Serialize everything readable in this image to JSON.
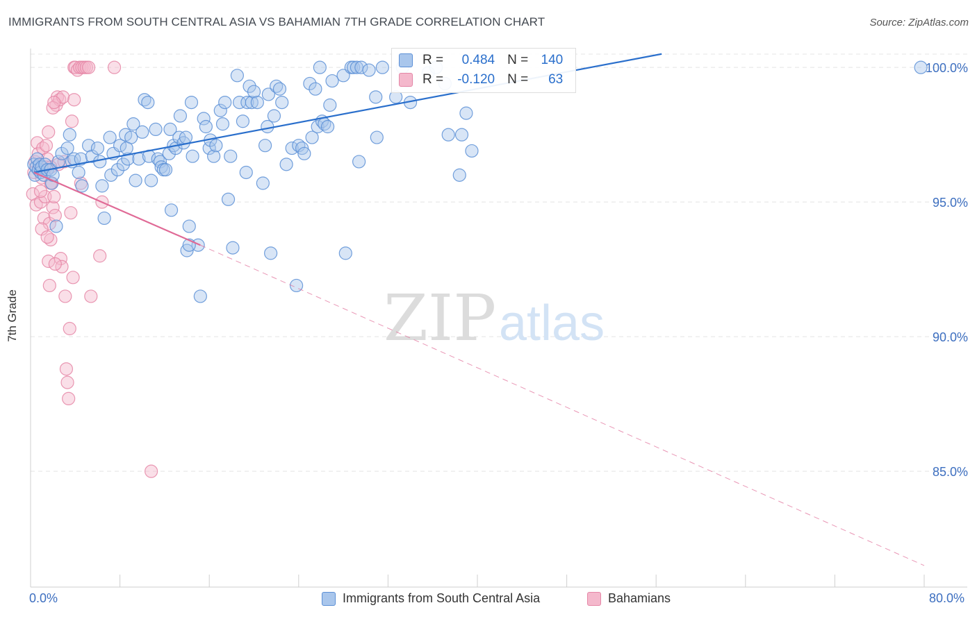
{
  "header": {
    "title": "IMMIGRANTS FROM SOUTH CENTRAL ASIA VS BAHAMIAN 7TH GRADE CORRELATION CHART",
    "source": "Source: ZipAtlas.com"
  },
  "watermark": {
    "zip": "ZIP",
    "atlas": "atlas"
  },
  "stats": {
    "blue": {
      "r_label": "R =",
      "r_value": "0.484",
      "n_label": "N =",
      "n_value": "140"
    },
    "pink": {
      "r_label": "R =",
      "r_value": "-0.120",
      "n_label": "N =",
      "n_value": "63"
    }
  },
  "colors": {
    "blue_fill": "#a9c6ec",
    "blue_stroke": "#5b8fd6",
    "blue_line": "#2a6fcc",
    "pink_fill": "#f4b8cc",
    "pink_stroke": "#e586a6",
    "pink_line": "#e06a96",
    "axis_label": "#3d6fc0",
    "grid": "#e4e4e4"
  },
  "chart_data": {
    "type": "scatter",
    "title": "IMMIGRANTS FROM SOUTH CENTRAL ASIA VS BAHAMIAN 7TH GRADE CORRELATION CHART",
    "xlabel": "",
    "ylabel": "7th Grade",
    "xlim": [
      0,
      80
    ],
    "ylim": [
      80.7,
      100.7
    ],
    "x_tick_labels": [
      "0.0%",
      "80.0%"
    ],
    "y_ticks": [
      85,
      90,
      95,
      100
    ],
    "y_tick_labels": [
      "85.0%",
      "90.0%",
      "95.0%",
      "100.0%"
    ],
    "grid": true,
    "legend": {
      "placement": "bottom-center"
    },
    "series": [
      {
        "name": "Immigrants from South Central Asia",
        "r": 0.484,
        "n": 140,
        "trend": {
          "x": [
            0.3,
            56.5
          ],
          "y": [
            96.1,
            100.5
          ],
          "dashed_extension": false
        },
        "points": [
          [
            0.3,
            96.4
          ],
          [
            0.4,
            96.0
          ],
          [
            0.5,
            96.3
          ],
          [
            0.6,
            96.6
          ],
          [
            0.7,
            96.2
          ],
          [
            0.8,
            96.4
          ],
          [
            0.9,
            96.1
          ],
          [
            1.0,
            96.3
          ],
          [
            1.2,
            96.0
          ],
          [
            1.3,
            96.4
          ],
          [
            1.5,
            96.2
          ],
          [
            1.8,
            96.2
          ],
          [
            1.9,
            95.7
          ],
          [
            2.0,
            96.0
          ],
          [
            2.3,
            94.1
          ],
          [
            2.5,
            96.5
          ],
          [
            2.8,
            96.8
          ],
          [
            3.3,
            97.0
          ],
          [
            3.5,
            97.5
          ],
          [
            3.7,
            96.5
          ],
          [
            3.9,
            96.6
          ],
          [
            4.3,
            96.1
          ],
          [
            4.5,
            96.6
          ],
          [
            4.6,
            95.6
          ],
          [
            5.2,
            97.1
          ],
          [
            5.5,
            96.7
          ],
          [
            6.0,
            97.0
          ],
          [
            6.2,
            96.5
          ],
          [
            6.4,
            95.6
          ],
          [
            6.6,
            94.4
          ],
          [
            7.1,
            97.4
          ],
          [
            7.2,
            96.0
          ],
          [
            7.4,
            96.8
          ],
          [
            7.8,
            96.2
          ],
          [
            8.0,
            97.1
          ],
          [
            8.3,
            96.4
          ],
          [
            8.5,
            97.5
          ],
          [
            8.7,
            96.6
          ],
          [
            9.0,
            97.4
          ],
          [
            9.2,
            97.9
          ],
          [
            9.4,
            95.8
          ],
          [
            9.7,
            96.6
          ],
          [
            10.0,
            97.6
          ],
          [
            10.2,
            98.8
          ],
          [
            10.5,
            98.7
          ],
          [
            10.6,
            96.7
          ],
          [
            10.8,
            95.8
          ],
          [
            11.2,
            97.7
          ],
          [
            11.4,
            96.6
          ],
          [
            11.6,
            96.5
          ],
          [
            11.7,
            96.3
          ],
          [
            11.9,
            96.2
          ],
          [
            12.1,
            96.2
          ],
          [
            12.4,
            96.8
          ],
          [
            12.5,
            97.7
          ],
          [
            12.6,
            94.7
          ],
          [
            12.8,
            97.1
          ],
          [
            13.0,
            97.0
          ],
          [
            13.3,
            97.4
          ],
          [
            13.4,
            98.2
          ],
          [
            13.7,
            97.2
          ],
          [
            13.9,
            97.4
          ],
          [
            14.0,
            93.2
          ],
          [
            14.2,
            94.1
          ],
          [
            14.4,
            98.7
          ],
          [
            14.5,
            96.7
          ],
          [
            15.0,
            93.4
          ],
          [
            15.2,
            91.5
          ],
          [
            15.5,
            98.1
          ],
          [
            15.7,
            97.8
          ],
          [
            16.0,
            97.0
          ],
          [
            16.1,
            97.3
          ],
          [
            16.4,
            96.7
          ],
          [
            16.6,
            97.1
          ],
          [
            17.0,
            98.4
          ],
          [
            17.2,
            97.9
          ],
          [
            17.4,
            98.7
          ],
          [
            17.7,
            95.1
          ],
          [
            17.9,
            96.7
          ],
          [
            18.1,
            93.3
          ],
          [
            18.5,
            99.7
          ],
          [
            18.7,
            98.7
          ],
          [
            19.0,
            98.0
          ],
          [
            19.3,
            96.1
          ],
          [
            19.4,
            98.7
          ],
          [
            19.6,
            99.3
          ],
          [
            19.8,
            98.7
          ],
          [
            20.0,
            99.1
          ],
          [
            20.3,
            98.7
          ],
          [
            20.8,
            95.7
          ],
          [
            21.0,
            97.1
          ],
          [
            21.2,
            97.8
          ],
          [
            21.3,
            99.0
          ],
          [
            21.5,
            93.1
          ],
          [
            21.8,
            98.2
          ],
          [
            22.0,
            99.3
          ],
          [
            22.3,
            99.2
          ],
          [
            22.5,
            98.7
          ],
          [
            22.9,
            96.4
          ],
          [
            23.4,
            97.0
          ],
          [
            23.8,
            91.9
          ],
          [
            24.0,
            97.1
          ],
          [
            24.3,
            97.0
          ],
          [
            24.5,
            96.8
          ],
          [
            25.0,
            99.4
          ],
          [
            25.2,
            97.4
          ],
          [
            25.5,
            99.2
          ],
          [
            25.7,
            97.8
          ],
          [
            25.9,
            100.0
          ],
          [
            26.1,
            98.0
          ],
          [
            26.3,
            97.9
          ],
          [
            26.6,
            97.8
          ],
          [
            26.8,
            98.6
          ],
          [
            27.0,
            99.5
          ],
          [
            28.0,
            99.7
          ],
          [
            28.2,
            93.1
          ],
          [
            28.7,
            100.0
          ],
          [
            28.9,
            100.0
          ],
          [
            29.2,
            100.0
          ],
          [
            29.4,
            96.5
          ],
          [
            29.6,
            100.0
          ],
          [
            30.3,
            99.9
          ],
          [
            30.9,
            98.9
          ],
          [
            31.0,
            97.4
          ],
          [
            31.5,
            100.0
          ],
          [
            32.7,
            98.9
          ],
          [
            33.3,
            100.0
          ],
          [
            33.7,
            99.5
          ],
          [
            34.0,
            98.7
          ],
          [
            35.6,
            99.8
          ],
          [
            36.3,
            100.0
          ],
          [
            37.1,
            99.4
          ],
          [
            37.4,
            97.5
          ],
          [
            38.4,
            96.0
          ],
          [
            38.6,
            97.5
          ],
          [
            39.0,
            98.3
          ],
          [
            39.5,
            96.9
          ],
          [
            79.7,
            100.0
          ],
          [
            14.2,
            93.4
          ],
          [
            8.6,
            97.0
          ]
        ]
      },
      {
        "name": "Bahamians",
        "r": -0.12,
        "n": 63,
        "trend": {
          "x": [
            0.3,
            15.2
          ],
          "y": [
            96.1,
            93.4
          ],
          "dashed_to": [
            80.0,
            81.5
          ]
        },
        "points": [
          [
            0.2,
            95.3
          ],
          [
            0.3,
            96.1
          ],
          [
            0.4,
            96.5
          ],
          [
            0.5,
            94.9
          ],
          [
            0.6,
            97.2
          ],
          [
            0.7,
            96.8
          ],
          [
            0.8,
            96.2
          ],
          [
            0.9,
            95.0
          ],
          [
            1.0,
            95.9
          ],
          [
            1.1,
            97.0
          ],
          [
            1.2,
            94.4
          ],
          [
            1.3,
            95.2
          ],
          [
            1.4,
            96.3
          ],
          [
            1.5,
            96.6
          ],
          [
            1.6,
            97.6
          ],
          [
            1.7,
            94.2
          ],
          [
            1.8,
            93.6
          ],
          [
            1.9,
            95.7
          ],
          [
            2.0,
            94.8
          ],
          [
            2.1,
            95.2
          ],
          [
            2.2,
            94.5
          ],
          [
            2.3,
            98.6
          ],
          [
            2.4,
            98.9
          ],
          [
            2.5,
            96.4
          ],
          [
            2.6,
            98.8
          ],
          [
            2.7,
            92.9
          ],
          [
            2.8,
            92.6
          ],
          [
            2.9,
            98.9
          ],
          [
            3.0,
            96.5
          ],
          [
            3.1,
            91.5
          ],
          [
            3.2,
            88.8
          ],
          [
            3.3,
            88.3
          ],
          [
            3.4,
            87.7
          ],
          [
            3.5,
            90.3
          ],
          [
            3.6,
            94.6
          ],
          [
            3.7,
            98.0
          ],
          [
            3.8,
            92.2
          ],
          [
            3.9,
            100.0
          ],
          [
            4.0,
            100.0
          ],
          [
            4.2,
            99.9
          ],
          [
            4.4,
            100.0
          ],
          [
            4.6,
            100.0
          ],
          [
            4.8,
            100.0
          ],
          [
            5.0,
            100.0
          ],
          [
            5.2,
            100.0
          ],
          [
            5.4,
            91.5
          ],
          [
            6.2,
            93.0
          ],
          [
            6.4,
            95.0
          ],
          [
            7.5,
            100.0
          ],
          [
            10.8,
            85.0
          ],
          [
            1.6,
            92.8
          ],
          [
            1.7,
            91.9
          ],
          [
            2.0,
            98.5
          ],
          [
            2.1,
            98.7
          ],
          [
            1.4,
            97.1
          ],
          [
            0.9,
            95.4
          ],
          [
            1.0,
            94.0
          ],
          [
            1.8,
            95.7
          ],
          [
            1.5,
            93.7
          ],
          [
            1.8,
            96.3
          ],
          [
            2.2,
            92.7
          ],
          [
            3.9,
            98.8
          ],
          [
            4.5,
            95.7
          ]
        ]
      }
    ]
  },
  "legend": {
    "items": [
      {
        "label": "Immigrants from South Central Asia"
      },
      {
        "label": "Bahamians"
      }
    ]
  }
}
